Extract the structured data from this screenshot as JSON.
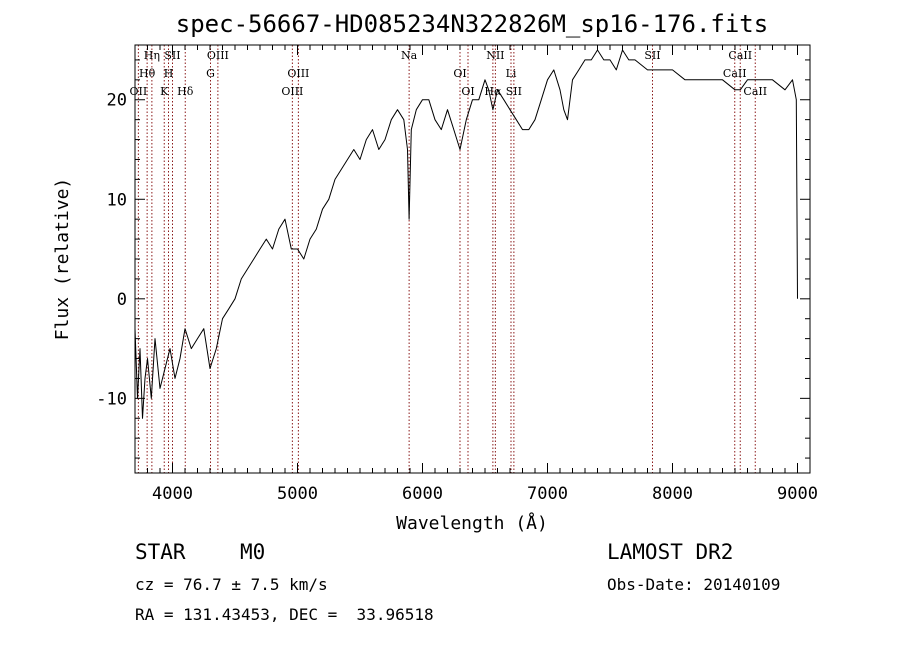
{
  "chart_data": {
    "type": "line",
    "title": "spec-56667-HD085234N322826M_sp16-176.fits",
    "xlabel": "Wavelength (Å)",
    "ylabel": "Flux (relative)",
    "xlim": [
      3700,
      9100
    ],
    "ylim": [
      -17.5,
      25.5
    ],
    "xticks": [
      4000,
      5000,
      6000,
      7000,
      8000,
      9000
    ],
    "yticks": [
      -10,
      0,
      10,
      20
    ],
    "grid": false,
    "legend": "none",
    "line_color": "#000000",
    "marker_color": "#8b1a1a",
    "series": [
      {
        "x": [
          3700,
          3720,
          3740,
          3760,
          3780,
          3800,
          3830,
          3860,
          3900,
          3940,
          3980,
          4020,
          4060,
          4100,
          4150,
          4200,
          4250,
          4300,
          4350,
          4400,
          4450,
          4500,
          4550,
          4600,
          4650,
          4700,
          4750,
          4800,
          4850,
          4900,
          4950,
          5000,
          5050,
          5100,
          5150,
          5200,
          5250,
          5300,
          5350,
          5400,
          5450,
          5500,
          5550,
          5600,
          5650,
          5700,
          5750,
          5800,
          5850,
          5880,
          5893,
          5910,
          5950,
          6000,
          6050,
          6100,
          6150,
          6200,
          6250,
          6300,
          6350,
          6400,
          6450,
          6500,
          6530,
          6563,
          6600,
          6650,
          6700,
          6750,
          6800,
          6850,
          6900,
          6950,
          7000,
          7050,
          7100,
          7130,
          7160,
          7200,
          7250,
          7300,
          7350,
          7400,
          7450,
          7500,
          7550,
          7600,
          7650,
          7700,
          7800,
          7900,
          8000,
          8100,
          8200,
          8300,
          8400,
          8500,
          8542,
          8600,
          8700,
          8800,
          8900,
          8960,
          8990,
          9000
        ],
        "y": [
          -3,
          -10,
          -5,
          -12,
          -8,
          -6,
          -10,
          -4,
          -9,
          -7,
          -5,
          -8,
          -6,
          -3,
          -5,
          -4,
          -3,
          -7,
          -5,
          -2,
          -1,
          0,
          2,
          3,
          4,
          5,
          6,
          5,
          7,
          8,
          5,
          5,
          4,
          6,
          7,
          9,
          10,
          12,
          13,
          14,
          15,
          14,
          16,
          17,
          15,
          16,
          18,
          19,
          18,
          15,
          8,
          17,
          19,
          20,
          20,
          18,
          17,
          19,
          17,
          15,
          18,
          20,
          20,
          22,
          21,
          19,
          21,
          20,
          19,
          18,
          17,
          17,
          18,
          20,
          22,
          23,
          21,
          19,
          18,
          22,
          23,
          24,
          24,
          25,
          24,
          24,
          23,
          25,
          24,
          24,
          23,
          23,
          23,
          22,
          22,
          22,
          22,
          21,
          21,
          22,
          22,
          22,
          21,
          22,
          20,
          0
        ]
      }
    ],
    "line_ids": [
      {
        "label": "Hη",
        "wl": 3835,
        "row": 0
      },
      {
        "label": "SII",
        "wl": 4000,
        "row": 0
      },
      {
        "label": "OIII",
        "wl": 4363,
        "row": 0
      },
      {
        "label": "Na",
        "wl": 5893,
        "row": 0
      },
      {
        "label": "NII",
        "wl": 6583,
        "row": 0
      },
      {
        "label": "SII",
        "wl": 7840,
        "row": 0
      },
      {
        "label": "CaII",
        "wl": 8542,
        "row": 0
      },
      {
        "label": "Hθ",
        "wl": 3797,
        "row": 1
      },
      {
        "label": "H",
        "wl": 3968,
        "row": 1
      },
      {
        "label": "G",
        "wl": 4304,
        "row": 1
      },
      {
        "label": "OIII",
        "wl": 5007,
        "row": 1
      },
      {
        "label": "OI",
        "wl": 6300,
        "row": 1
      },
      {
        "label": "Li",
        "wl": 6708,
        "row": 1
      },
      {
        "label": "CaII",
        "wl": 8498,
        "row": 1
      },
      {
        "label": "OII",
        "wl": 3727,
        "row": 2
      },
      {
        "label": "K",
        "wl": 3934,
        "row": 2
      },
      {
        "label": "Hδ",
        "wl": 4102,
        "row": 2
      },
      {
        "label": "OIII",
        "wl": 4959,
        "row": 2
      },
      {
        "label": "OI",
        "wl": 6364,
        "row": 2
      },
      {
        "label": "Hα",
        "wl": 6563,
        "row": 2
      },
      {
        "label": "SII",
        "wl": 6731,
        "row": 2
      },
      {
        "label": "CaII",
        "wl": 8662,
        "row": 2
      }
    ]
  },
  "info": {
    "object_class": "STAR",
    "subclass": "M0",
    "survey": "LAMOST DR2",
    "cz": "cz = 76.7 ± 7.5 km/s",
    "obs_date": "Obs-Date: 20140109",
    "coords": "RA = 131.43453, DEC =  33.96518"
  }
}
